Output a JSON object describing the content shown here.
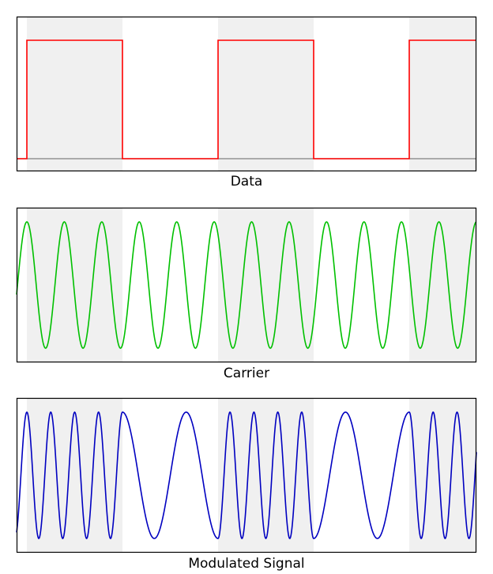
{
  "panels": [
    {
      "id": "data",
      "label": "Data",
      "kind": "square",
      "color": "#ff0000"
    },
    {
      "id": "carrier",
      "label": "Carrier",
      "kind": "sine",
      "color": "#00c000"
    },
    {
      "id": "modulated",
      "label": "Modulated Signal",
      "kind": "fsk",
      "color": "#0000c0"
    }
  ],
  "bit_sequence": [
    1,
    0,
    1,
    0,
    1
  ],
  "carrier_cycles": 12,
  "fsk": {
    "cycles_per_bit_one": 4,
    "cycles_per_bit_zero": 1.5
  },
  "colors": {
    "shade": "#f0f0f0",
    "frame": "#000000",
    "baseline": "#808080"
  }
}
